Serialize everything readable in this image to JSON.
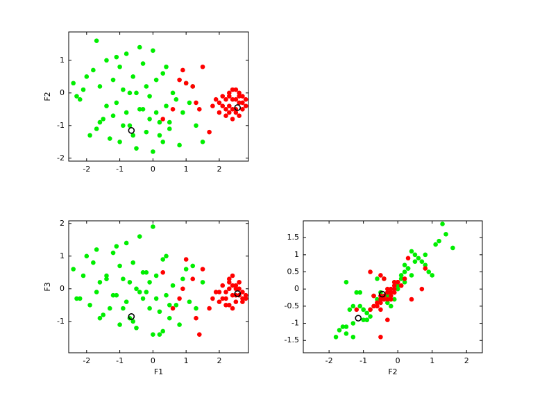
{
  "chart_data": [
    {
      "type": "scatter",
      "ylabel": "F2",
      "xlim": [
        -2.54,
        2.88
      ],
      "ylim": [
        -2.09,
        1.87
      ],
      "xticks": [
        -2,
        -1,
        0,
        1,
        2
      ],
      "yticks": [
        -2,
        -1,
        0,
        1
      ],
      "series": [
        {
          "color": "#00ee00",
          "x": [
            -2.4,
            -2.2,
            -2.0,
            -1.9,
            -1.7,
            -1.6,
            -1.5,
            -1.4,
            -1.3,
            -1.2,
            -1.1,
            -1.0,
            -1.0,
            -0.9,
            -0.8,
            -0.8,
            -0.7,
            -0.6,
            -0.5,
            -0.5,
            -0.4,
            -0.3,
            -0.3,
            -0.2,
            -0.1,
            0.0,
            0.0,
            0.1,
            0.2,
            0.3,
            0.3,
            0.4,
            0.5,
            0.6,
            0.8,
            0.9,
            1.0,
            1.1,
            1.3,
            1.5,
            -2.3,
            -1.8,
            -1.6,
            -1.2,
            -0.9,
            -0.6,
            -0.2,
            0.1,
            0.4,
            0.7,
            -1.4,
            -0.7,
            -0.1,
            0.2,
            -1.7,
            -1.1,
            -0.4,
            0.5,
            -2.1,
            1.2
          ],
          "values": [
            0.3,
            -0.2,
            0.5,
            -1.3,
            1.6,
            0.2,
            -0.8,
            1.0,
            -1.4,
            0.4,
            -0.3,
            0.8,
            -1.5,
            0.1,
            -0.6,
            1.2,
            -1.0,
            0.5,
            -1.7,
            0.0,
            1.4,
            -0.5,
            0.9,
            -1.2,
            -0.1,
            1.3,
            -1.8,
            0.4,
            -0.9,
            -1.5,
            0.6,
            -0.4,
            -1.1,
            0.0,
            -1.6,
            -0.6,
            0.3,
            -0.3,
            -1.0,
            -1.5,
            -0.1,
            0.7,
            -0.9,
            -0.7,
            -1.0,
            -1.3,
            0.2,
            -0.6,
            0.8,
            -0.2,
            -0.4,
            0.0,
            -0.8,
            -1.3,
            -1.1,
            1.1,
            -0.5,
            -0.9,
            0.1,
            0.2
          ]
        },
        {
          "color": "#ff0000",
          "x": [
            2.0,
            2.1,
            2.2,
            2.3,
            2.4,
            2.5,
            2.6,
            2.7,
            2.8,
            2.2,
            2.3,
            2.4,
            2.5,
            2.6,
            2.7,
            2.1,
            2.3,
            2.5,
            2.6,
            2.4,
            2.2,
            2.7,
            2.5,
            2.3,
            2.8,
            2.0,
            2.4,
            2.6,
            1.9,
            1.8,
            1.5,
            1.3,
            1.0,
            0.8,
            0.6,
            1.4,
            1.7,
            1.2,
            0.3,
            0.9
          ],
          "values": [
            -0.3,
            -0.1,
            -0.5,
            0.0,
            -0.2,
            -0.6,
            -0.3,
            -0.1,
            -0.2,
            -0.7,
            -0.4,
            0.1,
            -0.5,
            0.0,
            -0.5,
            -0.4,
            -0.6,
            -0.2,
            -0.7,
            -0.5,
            -0.2,
            -0.3,
            0.1,
            -0.1,
            -0.4,
            -0.6,
            -0.8,
            -0.1,
            -0.2,
            -0.4,
            0.8,
            -0.3,
            0.3,
            0.4,
            -0.5,
            -0.5,
            -1.2,
            0.2,
            -0.8,
            0.7
          ]
        },
        {
          "color": "#000000",
          "marker": "ring",
          "x": [
            -0.65,
            2.55
          ],
          "values": [
            -1.15,
            -0.45
          ]
        }
      ]
    },
    {
      "type": "scatter",
      "xlabel": "F1",
      "ylabel": "F3",
      "xlim": [
        -2.54,
        2.88
      ],
      "ylim": [
        -1.96,
        2.08
      ],
      "xticks": [
        -2,
        -1,
        0,
        1,
        2
      ],
      "yticks": [
        -1,
        0,
        1,
        2
      ],
      "series": [
        {
          "color": "#00ee00",
          "x": [
            -2.4,
            -2.2,
            -2.0,
            -1.9,
            -1.7,
            -1.6,
            -1.5,
            -1.4,
            -1.3,
            -1.2,
            -1.1,
            -1.0,
            -1.0,
            -0.9,
            -0.8,
            -0.8,
            -0.7,
            -0.6,
            -0.5,
            -0.5,
            -0.4,
            -0.3,
            -0.3,
            -0.2,
            -0.1,
            0.0,
            0.0,
            0.1,
            0.2,
            0.3,
            0.3,
            0.4,
            0.5,
            0.6,
            0.8,
            0.9,
            1.0,
            1.1,
            1.3,
            1.5,
            -2.3,
            -1.8,
            -1.6,
            -1.2,
            -0.9,
            -0.6,
            -0.2,
            0.1,
            0.4,
            0.7,
            -1.4,
            -0.7,
            -0.1,
            0.2,
            -1.7,
            -1.1,
            -0.4,
            0.5,
            -2.1,
            1.2
          ],
          "values": [
            0.6,
            -0.3,
            1.0,
            -0.5,
            1.2,
            0.2,
            -0.8,
            0.4,
            -0.6,
            1.1,
            -0.2,
            0.7,
            -1.1,
            0.3,
            -0.4,
            1.4,
            -0.9,
            0.8,
            -1.2,
            0.0,
            1.6,
            -0.3,
            0.5,
            -0.1,
            0.2,
            1.9,
            -1.4,
            0.4,
            -0.7,
            -1.3,
            0.9,
            -0.2,
            -0.5,
            0.1,
            -1.1,
            0.3,
            0.6,
            -0.4,
            -0.6,
            0.2,
            -0.3,
            0.8,
            -0.9,
            -0.2,
            -0.6,
            -1.0,
            0.5,
            -0.3,
            1.0,
            -0.5,
            0.3,
            0.2,
            -0.6,
            -1.4,
            -0.1,
            1.3,
            -0.1,
            -0.9,
            0.4,
            0.7
          ]
        },
        {
          "color": "#ff0000",
          "x": [
            2.0,
            2.1,
            2.2,
            2.3,
            2.4,
            2.5,
            2.6,
            2.7,
            2.8,
            2.2,
            2.3,
            2.4,
            2.5,
            2.6,
            2.7,
            2.1,
            2.3,
            2.5,
            2.6,
            2.4,
            2.2,
            2.7,
            2.5,
            2.3,
            2.8,
            2.0,
            2.4,
            2.6,
            1.9,
            1.8,
            1.5,
            1.3,
            1.0,
            0.8,
            0.6,
            1.4,
            1.7,
            1.2,
            0.3,
            0.9
          ],
          "values": [
            -0.1,
            0.1,
            -0.3,
            0.2,
            -0.2,
            -0.4,
            0.0,
            -0.1,
            -0.3,
            -0.5,
            0.3,
            0.1,
            -0.2,
            0.2,
            -0.4,
            -0.3,
            -0.5,
            0.0,
            -0.2,
            0.4,
            -0.1,
            -0.3,
            0.1,
            0.0,
            -0.2,
            -0.4,
            -0.6,
            0.2,
            -0.1,
            -0.3,
            0.6,
            -0.9,
            0.9,
            -0.3,
            -0.6,
            -1.4,
            -0.6,
            0.3,
            0.5,
            0.0
          ]
        },
        {
          "color": "#000000",
          "marker": "ring",
          "x": [
            -0.65,
            2.55
          ],
          "values": [
            -0.85,
            -0.15
          ]
        }
      ]
    },
    {
      "type": "scatter",
      "xlabel": "F2",
      "xlim": [
        -2.75,
        2.46
      ],
      "ylim": [
        -1.86,
        1.99
      ],
      "xticks": [
        -2,
        -1,
        0,
        1,
        2
      ],
      "yticks": [
        -1.5,
        -1,
        -0.5,
        0,
        0.5,
        1,
        1.5
      ],
      "series": [
        {
          "color": "#00ee00",
          "x": [
            0.3,
            -0.2,
            0.5,
            -1.3,
            1.6,
            0.2,
            -0.8,
            1.0,
            -1.4,
            0.4,
            -0.3,
            0.8,
            -1.5,
            0.1,
            -0.6,
            1.2,
            -1.0,
            0.5,
            -1.7,
            0.0,
            1.4,
            -0.5,
            0.9,
            -1.2,
            -0.1,
            1.3,
            -1.8,
            0.4,
            -0.9,
            -1.5,
            0.6,
            -0.4,
            -1.1,
            0.0,
            -1.6,
            -0.6,
            0.3,
            -0.3,
            -1.0,
            -1.5,
            -0.1,
            0.7,
            -0.9,
            -0.7,
            -1.0,
            -1.3,
            0.2,
            -0.6,
            0.8,
            -0.2,
            -0.4,
            0.0,
            -0.8,
            -1.3,
            -1.1,
            1.1,
            -0.5,
            -0.9,
            0.1,
            0.2
          ],
          "values": [
            0.6,
            -0.3,
            1.0,
            -0.5,
            1.2,
            0.2,
            -0.8,
            0.4,
            -0.6,
            1.1,
            -0.2,
            0.7,
            -1.1,
            0.3,
            -0.4,
            1.4,
            -0.9,
            0.8,
            -1.2,
            0.0,
            1.6,
            -0.3,
            0.5,
            -0.1,
            0.2,
            1.9,
            -1.4,
            0.4,
            -0.7,
            -1.3,
            0.9,
            -0.2,
            -0.5,
            0.1,
            -1.1,
            0.3,
            0.6,
            -0.4,
            -0.6,
            0.2,
            -0.3,
            0.8,
            -0.9,
            -0.2,
            -0.6,
            -1.0,
            0.5,
            -0.3,
            1.0,
            -0.5,
            0.3,
            0.2,
            -0.6,
            -1.4,
            -0.1,
            1.3,
            -0.1,
            -0.9,
            0.4,
            0.7
          ]
        },
        {
          "color": "#ff0000",
          "x": [
            -0.3,
            -0.1,
            -0.5,
            0.0,
            -0.2,
            -0.6,
            -0.3,
            -0.1,
            -0.2,
            -0.7,
            -0.4,
            0.1,
            -0.5,
            0.0,
            -0.5,
            -0.4,
            -0.6,
            -0.2,
            -0.7,
            -0.5,
            -0.2,
            -0.3,
            0.1,
            -0.1,
            -0.4,
            -0.6,
            -0.8,
            -0.1,
            -0.2,
            -0.4,
            0.8,
            -0.3,
            0.3,
            0.4,
            -0.5,
            -0.5,
            -1.2,
            0.2,
            -0.8,
            0.7
          ],
          "values": [
            -0.1,
            0.1,
            -0.3,
            0.2,
            -0.2,
            -0.4,
            0.0,
            -0.1,
            -0.3,
            -0.5,
            0.3,
            0.1,
            -0.2,
            0.2,
            -0.4,
            -0.3,
            -0.5,
            0.0,
            -0.2,
            0.4,
            -0.1,
            -0.3,
            0.1,
            0.0,
            -0.2,
            -0.4,
            -0.6,
            0.2,
            -0.1,
            -0.3,
            0.6,
            -0.9,
            0.9,
            -0.3,
            -0.6,
            -1.4,
            -0.6,
            0.3,
            0.5,
            0.0
          ]
        },
        {
          "color": "#000000",
          "marker": "ring",
          "x": [
            -1.15,
            -0.45
          ],
          "values": [
            -0.85,
            -0.15
          ]
        }
      ]
    }
  ]
}
